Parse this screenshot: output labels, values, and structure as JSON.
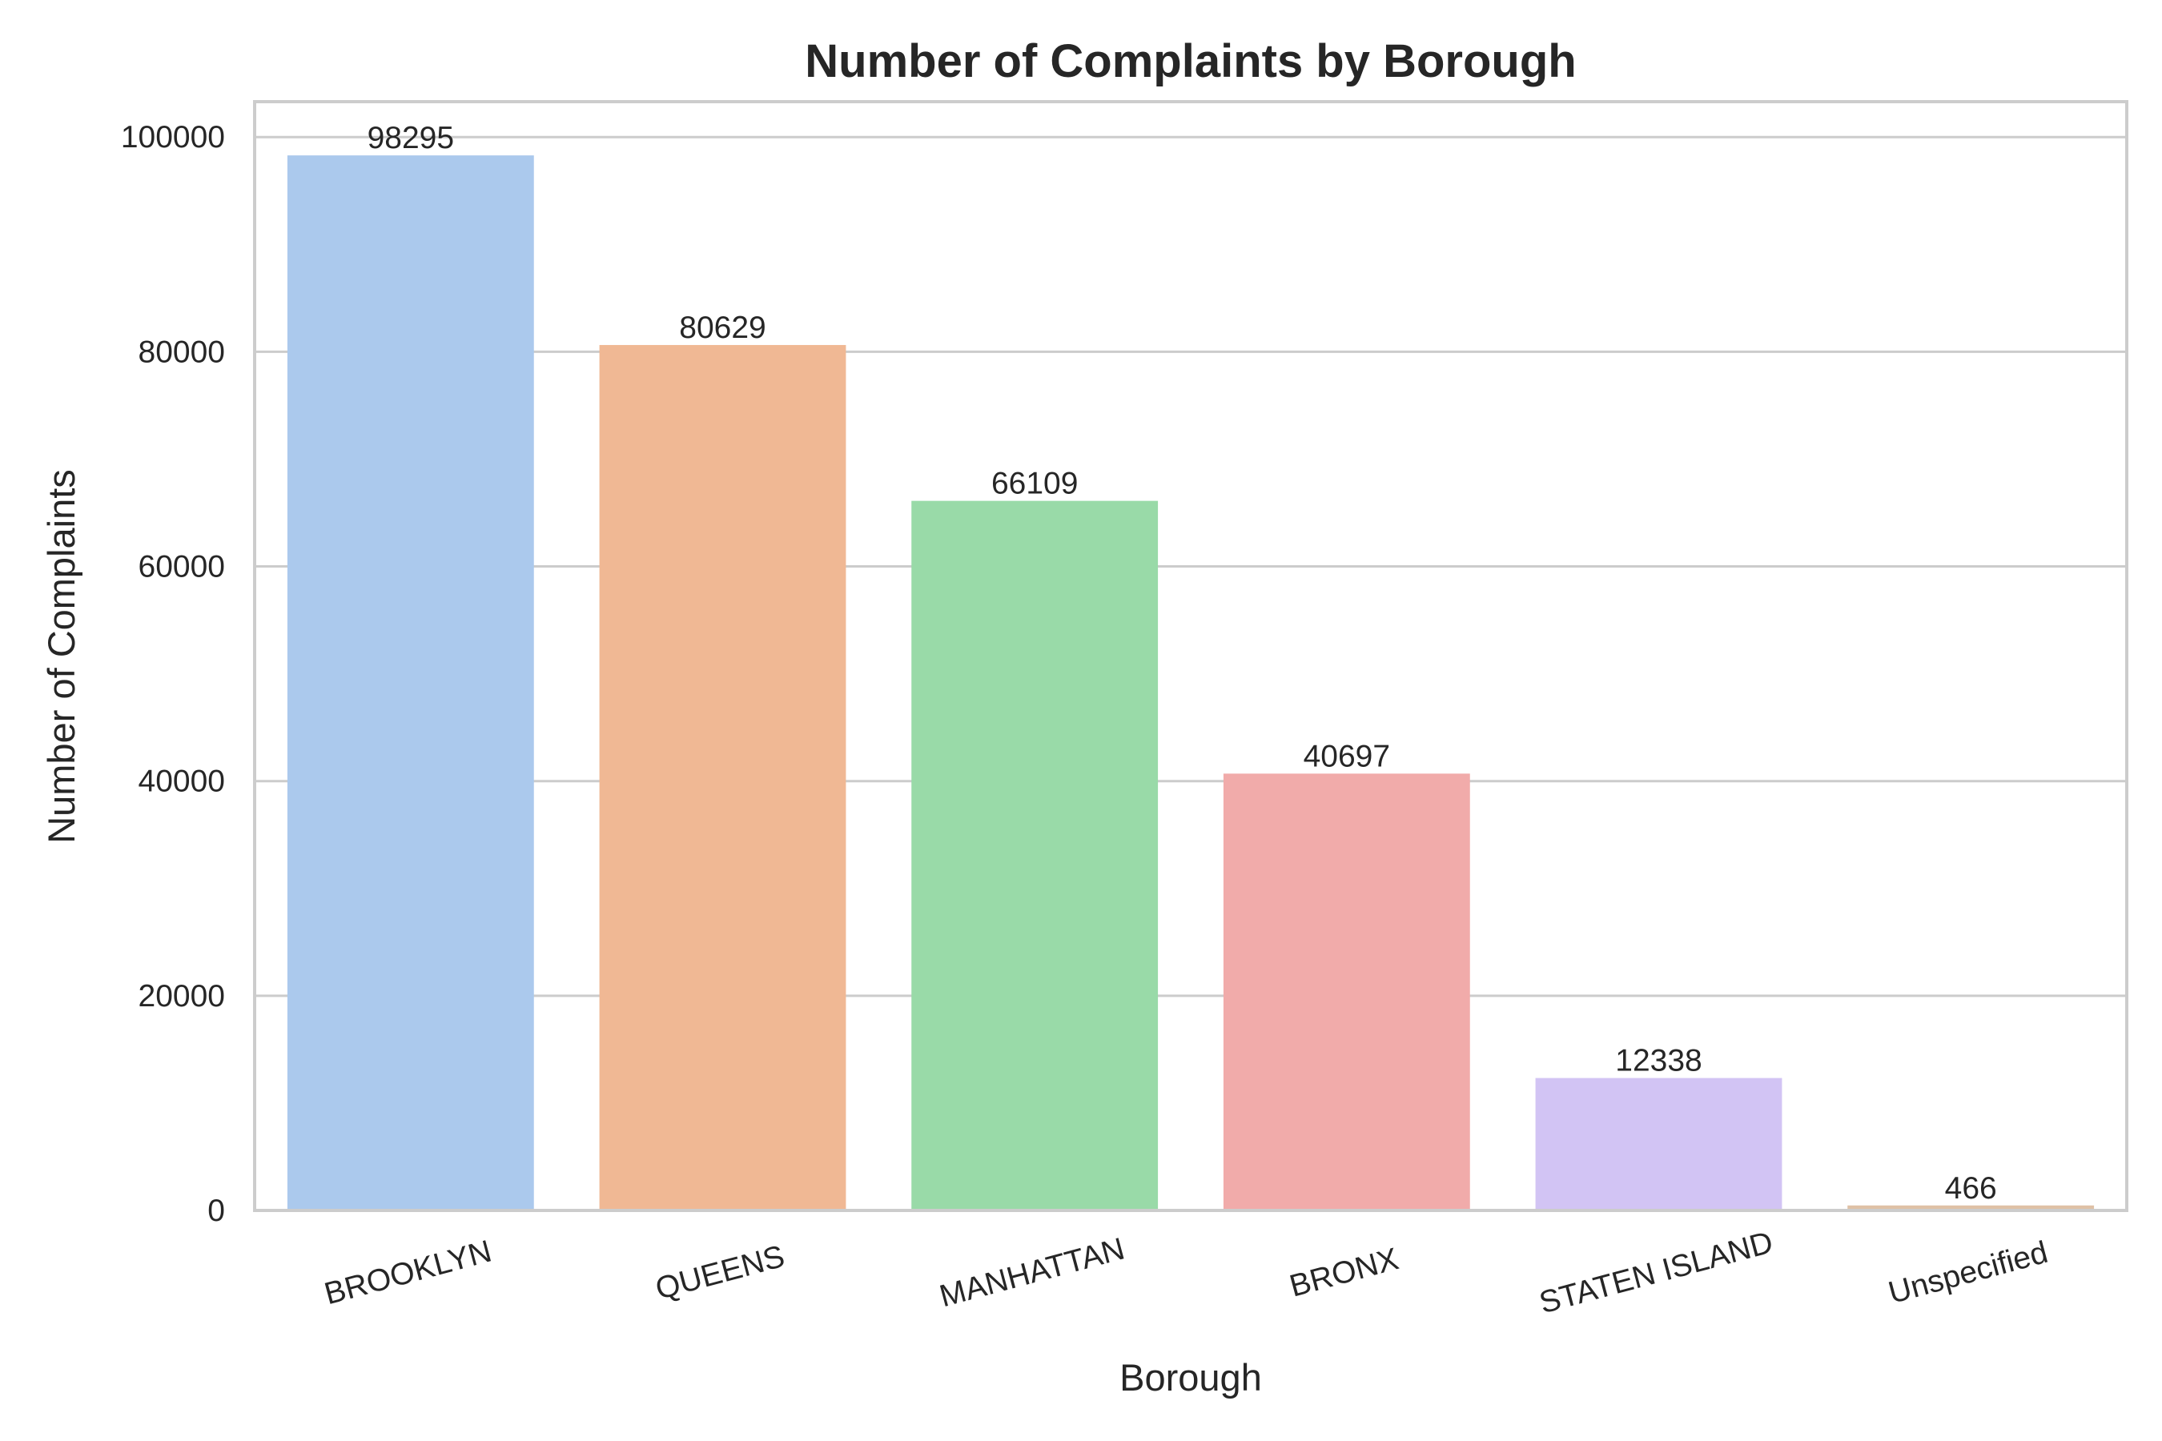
{
  "chart_data": {
    "type": "bar",
    "title": "Number of Complaints by Borough",
    "xlabel": "Borough",
    "ylabel": "Number of Complaints",
    "categories": [
      "BROOKLYN",
      "QUEENS",
      "MANHATTAN",
      "BRONX",
      "STATEN ISLAND",
      "Unspecified"
    ],
    "values": [
      98295,
      80629,
      66109,
      40697,
      12338,
      466
    ],
    "value_labels": [
      "98295",
      "80629",
      "66109",
      "40697",
      "12338",
      "466"
    ],
    "colors": [
      "#abc9ed",
      "#f0b894",
      "#99daa8",
      "#f1abaa",
      "#d2c4f4",
      "#dfc1a6"
    ],
    "yticks": [
      0,
      20000,
      40000,
      60000,
      80000,
      100000
    ],
    "ytick_labels": [
      "0",
      "20000",
      "40000",
      "60000",
      "80000",
      "100000"
    ],
    "ylim": [
      0,
      103300
    ],
    "grid": true
  }
}
